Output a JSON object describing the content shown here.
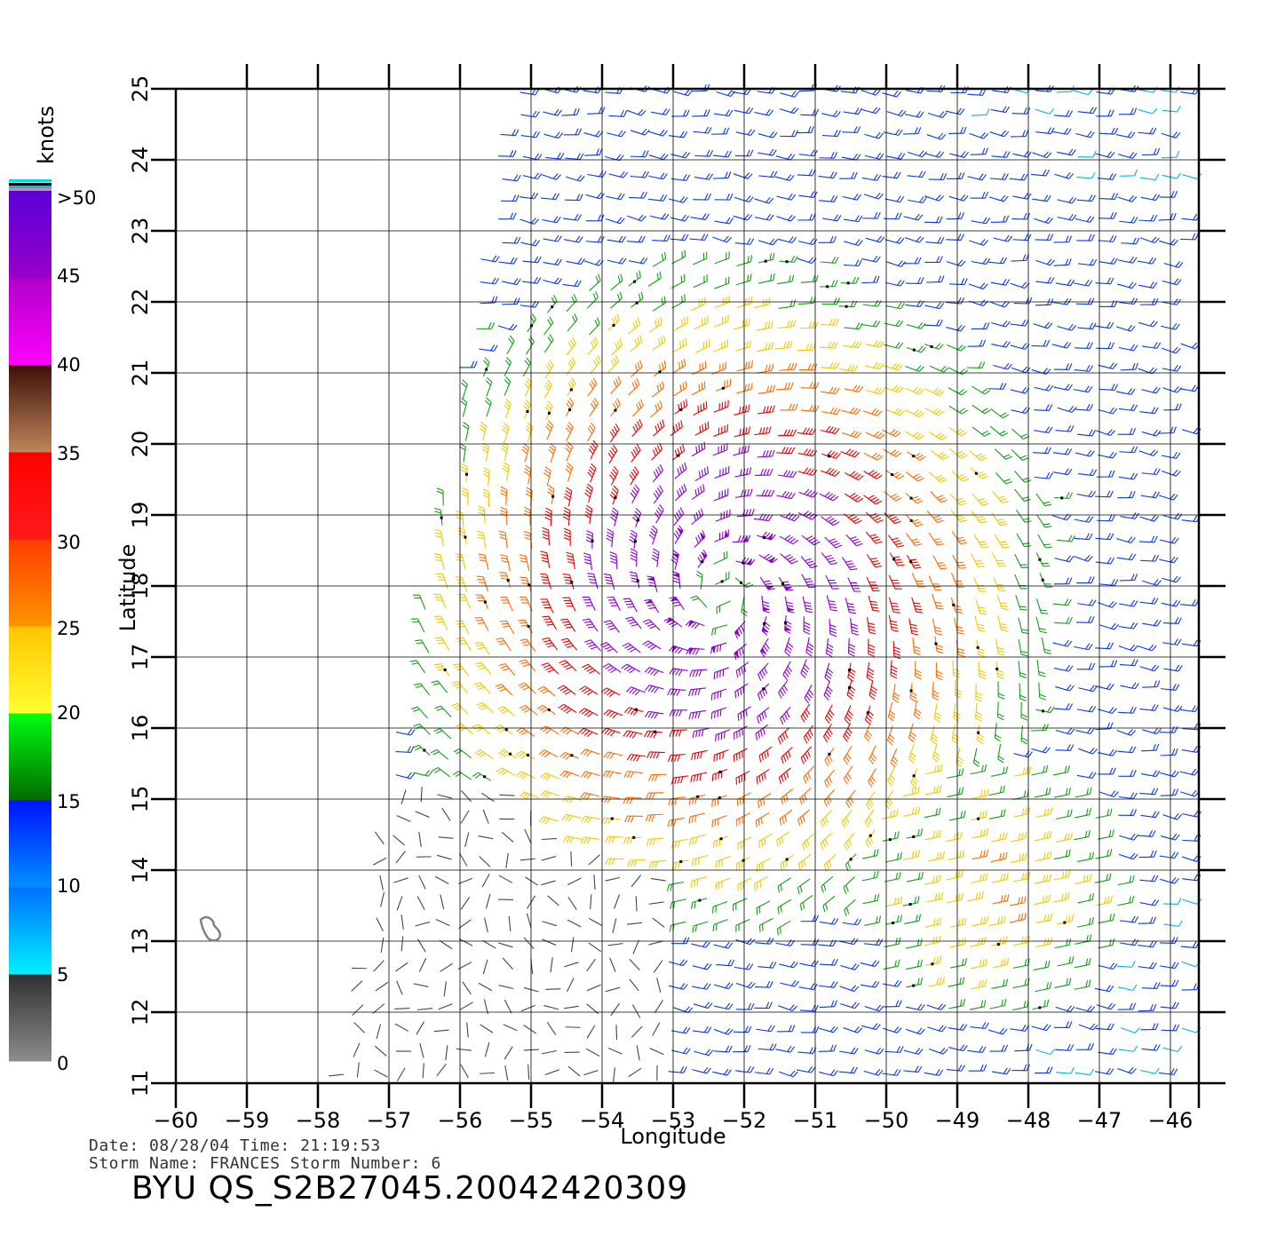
{
  "map": {
    "xlabel": "Longitude",
    "ylabel": "Latitude",
    "lon_range": [
      -60,
      -45.6
    ],
    "lat_range": [
      11,
      25
    ],
    "lon_ticks": [
      "−60",
      "−59",
      "−58",
      "−57",
      "−56",
      "−55",
      "−54",
      "−53",
      "−52",
      "−51",
      "−50",
      "−49",
      "−48",
      "−47",
      "−46"
    ],
    "lat_ticks": [
      "11",
      "12",
      "13",
      "14",
      "15",
      "16",
      "17",
      "18",
      "19",
      "20",
      "21",
      "22",
      "23",
      "24",
      "25"
    ],
    "storm_center": {
      "lon": -52.3,
      "lat": 17.9
    }
  },
  "colorbar": {
    "unit": "knots",
    "labels": [
      ">50",
      "45",
      "40",
      "35",
      "30",
      "25",
      "20",
      "15",
      "10",
      "5",
      "0"
    ],
    "stops": [
      {
        "from": 0,
        "to": 5,
        "top": "#303030",
        "bottom": "#8c8c8c"
      },
      {
        "from": 5,
        "to": 10,
        "top": "#0070ff",
        "bottom": "#00f0ff"
      },
      {
        "from": 10,
        "to": 15,
        "top": "#0010ff",
        "bottom": "#0090ff"
      },
      {
        "from": 15,
        "to": 20,
        "top": "#00ff10",
        "bottom": "#006a00"
      },
      {
        "from": 20,
        "to": 25,
        "top": "#ffc400",
        "bottom": "#ffff30"
      },
      {
        "from": 25,
        "to": 30,
        "top": "#ff3a00",
        "bottom": "#ff9400"
      },
      {
        "from": 30,
        "to": 35,
        "top": "#ff0000",
        "bottom": "#ff1a1a"
      },
      {
        "from": 35,
        "to": 40,
        "top": "#3c0f08",
        "bottom": "#c0865a"
      },
      {
        "from": 40,
        "to": 45,
        "top": "#b000c8",
        "bottom": "#ff00ff"
      },
      {
        "from": 45,
        "to": 50,
        "top": "#5a00d8",
        "bottom": "#9800c8"
      }
    ]
  },
  "footer": {
    "date_line": "Date: 08/28/04   Time: 21:19:53",
    "storm_line": "Storm Name: FRANCES   Storm Number: 6",
    "product": "BYU QS_S2B27045.20042420309"
  }
}
